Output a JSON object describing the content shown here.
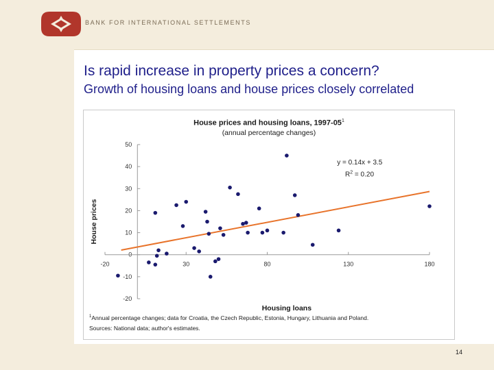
{
  "header": {
    "org_name": "BANK FOR INTERNATIONAL SETTLEMENTS"
  },
  "slide": {
    "title": "Is rapid increase in property prices a concern?",
    "subtitle": "Growth of housing loans and house prices closely correlated",
    "page_number": "14"
  },
  "chart_data": {
    "type": "scatter",
    "title": "House prices and housing loans, 1997-05",
    "title_footnote_mark": "1",
    "subtitle": "(annual percentage changes)",
    "xlabel": "Housing loans",
    "ylabel": "House prices",
    "xlim": [
      -20,
      180
    ],
    "ylim": [
      -20,
      50
    ],
    "xticks": [
      -20,
      30,
      80,
      130,
      180
    ],
    "yticks": [
      -20,
      -10,
      0,
      10,
      20,
      30,
      40,
      50
    ],
    "grid": false,
    "marker_color": "#1a1a6e",
    "trendline": {
      "slope": 0.14,
      "intercept": 3.5,
      "color": "#e8732a",
      "equation": "y = 0.14x + 3.5",
      "r2_prefix": "R",
      "r2_exp": "2",
      "r2_suffix": " = 0.20"
    },
    "points": [
      {
        "x": -12,
        "y": -9.5
      },
      {
        "x": 7,
        "y": -3.5
      },
      {
        "x": 11,
        "y": -4.5
      },
      {
        "x": 11,
        "y": 19
      },
      {
        "x": 12,
        "y": -0.5
      },
      {
        "x": 13,
        "y": 2
      },
      {
        "x": 18,
        "y": 0.5
      },
      {
        "x": 24,
        "y": 22.5
      },
      {
        "x": 28,
        "y": 13
      },
      {
        "x": 30,
        "y": 24
      },
      {
        "x": 35,
        "y": 3
      },
      {
        "x": 38,
        "y": 1.5
      },
      {
        "x": 42,
        "y": 19.5
      },
      {
        "x": 43,
        "y": 15
      },
      {
        "x": 44,
        "y": 9.5
      },
      {
        "x": 45,
        "y": -10
      },
      {
        "x": 48,
        "y": -3
      },
      {
        "x": 50,
        "y": -2
      },
      {
        "x": 51,
        "y": 12
      },
      {
        "x": 53,
        "y": 9
      },
      {
        "x": 57,
        "y": 30.5
      },
      {
        "x": 62,
        "y": 27.5
      },
      {
        "x": 65,
        "y": 14
      },
      {
        "x": 67,
        "y": 14.5
      },
      {
        "x": 68,
        "y": 10
      },
      {
        "x": 75,
        "y": 21
      },
      {
        "x": 77,
        "y": 10
      },
      {
        "x": 80,
        "y": 11
      },
      {
        "x": 90,
        "y": 10
      },
      {
        "x": 92,
        "y": 45
      },
      {
        "x": 97,
        "y": 27
      },
      {
        "x": 99,
        "y": 18
      },
      {
        "x": 108,
        "y": 4.5
      },
      {
        "x": 124,
        "y": 11
      },
      {
        "x": 180,
        "y": 22
      }
    ],
    "footnote_mark": "1",
    "footnote": "Annual percentage changes; data for Croatia, the Czech Republic, Estonia, Hungary, Lithuania and Poland.",
    "sources": "Sources: National data; author's estimates."
  },
  "colors": {
    "title_blue": "#1f1f8a",
    "band_beige": "#f4eddd",
    "logo_red": "#b1362b",
    "trendline_orange": "#e8732a",
    "marker_navy": "#1a1a6e"
  },
  "icons": {
    "logo": "bis-logo-icon"
  }
}
